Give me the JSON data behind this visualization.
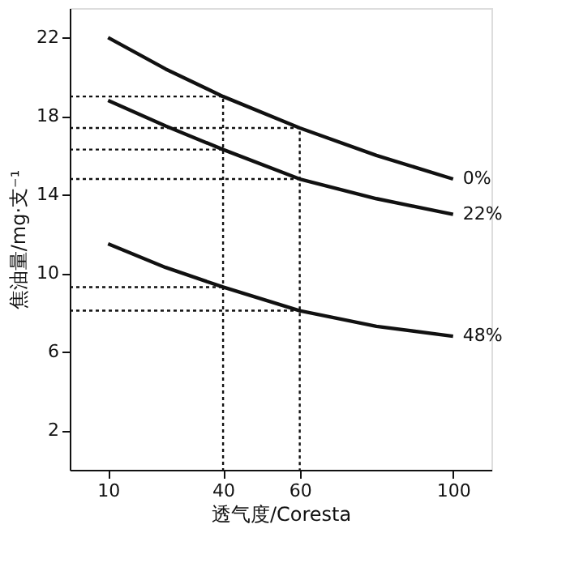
{
  "chart_data": {
    "type": "line",
    "xlabel": "透气度/Coresta",
    "ylabel": "焦油量/mg·支⁻¹",
    "xlim": [
      0,
      110
    ],
    "ylim": [
      0,
      23.5
    ],
    "xticks": [
      10,
      40,
      60,
      100
    ],
    "yticks": [
      2,
      6,
      10,
      14,
      18,
      22
    ],
    "marker": "none",
    "series": [
      {
        "name": "0%",
        "color": "#111111",
        "x": [
          10,
          25,
          40,
          60,
          80,
          100
        ],
        "values": [
          22,
          20.4,
          19,
          17.4,
          16,
          14.8
        ]
      },
      {
        "name": "22%",
        "color": "#111111",
        "x": [
          10,
          25,
          40,
          60,
          80,
          100
        ],
        "values": [
          18.8,
          17.5,
          16.3,
          14.8,
          13.8,
          13
        ]
      },
      {
        "name": "48%",
        "color": "#111111",
        "x": [
          10,
          25,
          40,
          60,
          80,
          100
        ],
        "values": [
          11.5,
          10.3,
          9.3,
          8.1,
          7.3,
          6.8
        ]
      },
      {
        "color": "#111111",
        "line_style": "dotted",
        "x": [
          0,
          40,
          40
        ],
        "values": [
          19,
          19,
          0
        ]
      },
      {
        "color": "#111111",
        "line_style": "dotted",
        "x": [
          0,
          60,
          60
        ],
        "values": [
          17.4,
          17.4,
          0
        ]
      },
      {
        "color": "#111111",
        "line_style": "dotted",
        "x": [
          0,
          40
        ],
        "values": [
          16.3,
          16.3
        ]
      },
      {
        "color": "#111111",
        "line_style": "dotted",
        "x": [
          0,
          60
        ],
        "values": [
          14.8,
          14.8
        ]
      },
      {
        "color": "#111111",
        "line_style": "dotted",
        "x": [
          0,
          40
        ],
        "values": [
          9.3,
          9.3
        ]
      },
      {
        "color": "#111111",
        "line_style": "dotted",
        "x": [
          0,
          60
        ],
        "values": [
          8.1,
          8.1
        ]
      }
    ]
  }
}
